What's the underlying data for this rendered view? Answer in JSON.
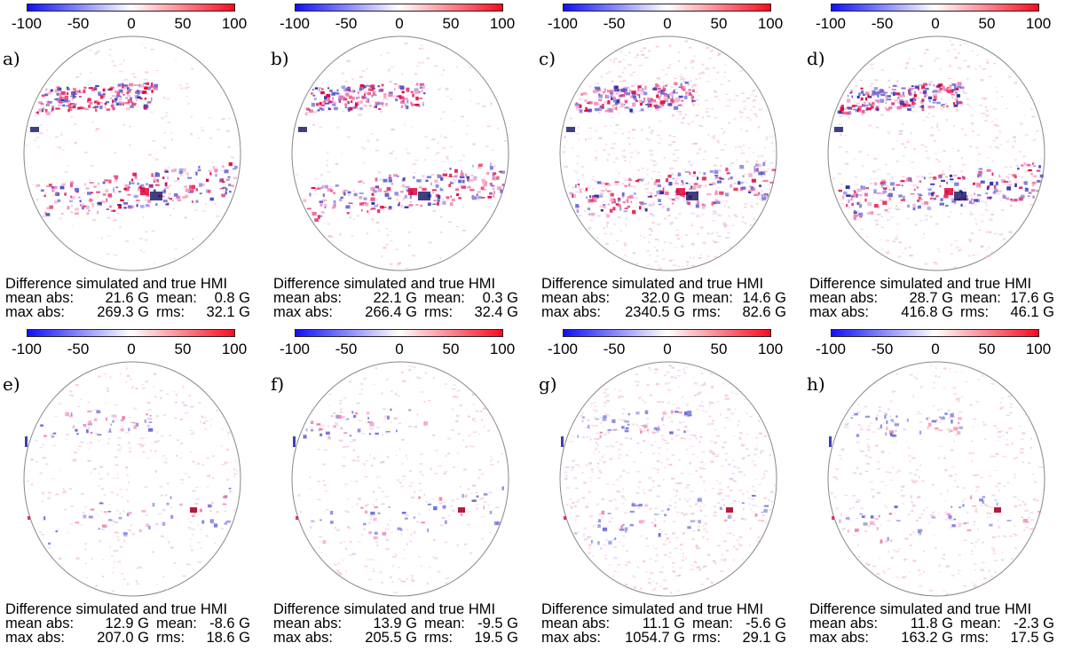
{
  "colorbar": {
    "ticks": [
      "-100",
      "-50",
      "0",
      "50",
      "100"
    ],
    "min_color": "#1010ff",
    "zero_color": "#ffffff",
    "max_color": "#ff0a1e"
  },
  "panels": [
    {
      "label": "a)",
      "caption": "Difference simulated and true HMI",
      "mean_abs": "21.6 G",
      "mean": "0.8 G",
      "max_abs": "269.3 G",
      "rms": "32.1 G"
    },
    {
      "label": "b)",
      "caption": "Difference simulated and true HMI",
      "mean_abs": "22.1 G",
      "mean": "0.3 G",
      "max_abs": "266.4 G",
      "rms": "32.4 G"
    },
    {
      "label": "c)",
      "caption": "Difference simulated and true HMI",
      "mean_abs": "32.0 G",
      "mean": "14.6 G",
      "max_abs": "2340.5 G",
      "rms": "82.6 G"
    },
    {
      "label": "d)",
      "caption": "Difference simulated and true HMI",
      "mean_abs": "28.7 G",
      "mean": "17.6 G",
      "max_abs": "416.8 G",
      "rms": "46.1 G"
    },
    {
      "label": "e)",
      "caption": "Difference simulated and true HMI",
      "mean_abs": "12.9 G",
      "mean": "-8.6 G",
      "max_abs": "207.0 G",
      "rms": "18.6 G"
    },
    {
      "label": "f)",
      "caption": "Difference simulated and true HMI",
      "mean_abs": "13.9 G",
      "mean": "-9.5 G",
      "max_abs": "205.5 G",
      "rms": "19.5 G"
    },
    {
      "label": "g)",
      "caption": "Difference simulated and true HMI",
      "mean_abs": "11.1 G",
      "mean": "-5.6 G",
      "max_abs": "1054.7 G",
      "rms": "29.1 G"
    },
    {
      "label": "h)",
      "caption": "Difference simulated and true HMI",
      "mean_abs": "11.8 G",
      "mean": "-2.3 G",
      "max_abs": "163.2 G",
      "rms": "17.5 G"
    }
  ],
  "stat_labels": {
    "mean_abs": "mean abs:",
    "mean": "mean:",
    "max_abs": "max abs:",
    "rms": "rms:"
  }
}
